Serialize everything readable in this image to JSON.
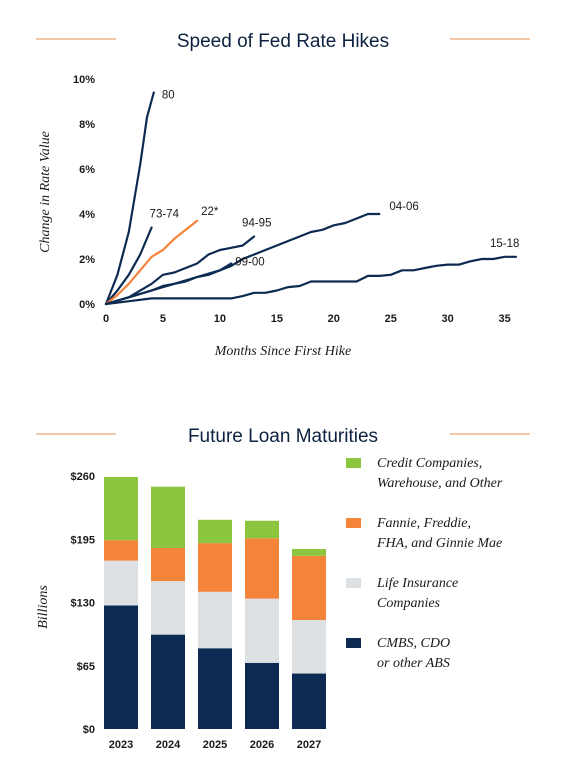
{
  "colors": {
    "navy": "#0d2b52",
    "orange": "#f5843b",
    "orange_rule": "#f0b58a",
    "green": "#8cc63f",
    "light_gray": "#dde1e3",
    "text": "#0d2240"
  },
  "chart_data": [
    {
      "type": "line",
      "title": "Speed of Fed Rate Hikes",
      "xlabel": "Months Since First Hike",
      "ylabel": "Change in Rate Value",
      "xlim": [
        0,
        36
      ],
      "ylim": [
        0,
        10
      ],
      "x_ticks": [
        "0",
        "5",
        "10",
        "15",
        "20",
        "25",
        "30",
        "35"
      ],
      "x_tick_values": [
        0,
        5,
        10,
        15,
        20,
        25,
        30,
        35
      ],
      "y_ticks": [
        "0%",
        "2%",
        "4%",
        "6%",
        "8%",
        "10%"
      ],
      "y_tick_values": [
        0,
        2,
        4,
        6,
        8,
        10
      ],
      "grid": false,
      "series": [
        {
          "name": "80",
          "color": "#0d2b52",
          "x": [
            0,
            1,
            2,
            3,
            3.6,
            4.2
          ],
          "y": [
            0,
            1.3,
            3.2,
            6.2,
            8.3,
            9.4
          ]
        },
        {
          "name": "73-74",
          "color": "#0d2b52",
          "x": [
            0,
            1,
            2,
            3,
            4
          ],
          "y": [
            0,
            0.6,
            1.3,
            2.2,
            3.4
          ]
        },
        {
          "name": "22*",
          "color": "#f5843b",
          "x": [
            0,
            1,
            2,
            3,
            4,
            5,
            6,
            7,
            8
          ],
          "y": [
            0,
            0.4,
            0.9,
            1.5,
            2.1,
            2.4,
            2.9,
            3.3,
            3.7
          ]
        },
        {
          "name": "94-95",
          "color": "#0d2b52",
          "x": [
            0,
            2,
            4,
            5,
            6,
            7,
            8,
            9,
            10,
            11,
            12,
            13
          ],
          "y": [
            0,
            0.3,
            0.9,
            1.3,
            1.4,
            1.6,
            1.8,
            2.2,
            2.4,
            2.5,
            2.6,
            3.0
          ]
        },
        {
          "name": "99-00",
          "color": "#0d2b52",
          "x": [
            0,
            2,
            4,
            5,
            6,
            7,
            8,
            9,
            10,
            11
          ],
          "y": [
            0,
            0.3,
            0.6,
            0.8,
            0.9,
            1.0,
            1.2,
            1.3,
            1.5,
            1.8
          ]
        },
        {
          "name": "04-06",
          "color": "#0d2b52",
          "x": [
            0,
            2,
            4,
            6,
            8,
            10,
            11,
            12,
            13,
            14,
            15,
            16,
            17,
            18,
            19,
            20,
            21,
            22,
            23,
            24
          ],
          "y": [
            0,
            0.3,
            0.6,
            0.9,
            1.2,
            1.5,
            1.7,
            2.0,
            2.2,
            2.4,
            2.6,
            2.8,
            3.0,
            3.2,
            3.3,
            3.5,
            3.6,
            3.8,
            4.0,
            4.0
          ]
        },
        {
          "name": "15-18",
          "color": "#0d2b52",
          "x": [
            0,
            4,
            8,
            11,
            12,
            13,
            14,
            15,
            16,
            17,
            18,
            19,
            20,
            21,
            22,
            23,
            24,
            25,
            26,
            27,
            28,
            29,
            30,
            31,
            32,
            33,
            34,
            35,
            36
          ],
          "y": [
            0,
            0.25,
            0.25,
            0.25,
            0.35,
            0.5,
            0.5,
            0.6,
            0.75,
            0.8,
            1.0,
            1.0,
            1.0,
            1.0,
            1.0,
            1.25,
            1.25,
            1.3,
            1.5,
            1.5,
            1.6,
            1.7,
            1.75,
            1.75,
            1.9,
            2.0,
            2.0,
            2.1,
            2.1
          ]
        }
      ]
    },
    {
      "type": "bar",
      "stacked": true,
      "title": "Future Loan Maturities",
      "ylabel": "Billions",
      "ylim": [
        0,
        260
      ],
      "y_ticks": [
        "$0",
        "$65",
        "$130",
        "$195",
        "$260"
      ],
      "y_tick_values": [
        0,
        65,
        130,
        195,
        260
      ],
      "categories": [
        "2023",
        "2024",
        "2025",
        "2026",
        "2027"
      ],
      "legend": "right",
      "series": [
        {
          "name": "CMBS, CDO\nor other ABS",
          "color": "#0d2b52",
          "values": [
            127,
            97,
            83,
            68,
            57
          ]
        },
        {
          "name": "Life Insurance\nCompanies",
          "color": "#dde1e3",
          "values": [
            46,
            55,
            58,
            66,
            55
          ]
        },
        {
          "name": "Fannie, Freddie,\nFHA, and Ginnie Mae",
          "color": "#f5843b",
          "values": [
            21,
            34,
            50,
            62,
            66
          ]
        },
        {
          "name": "Credit Companies,\nWarehouse, and Other",
          "color": "#8cc63f",
          "values": [
            65,
            63,
            24,
            18,
            7
          ]
        }
      ],
      "legend_order": [
        3,
        2,
        1,
        0
      ]
    }
  ]
}
